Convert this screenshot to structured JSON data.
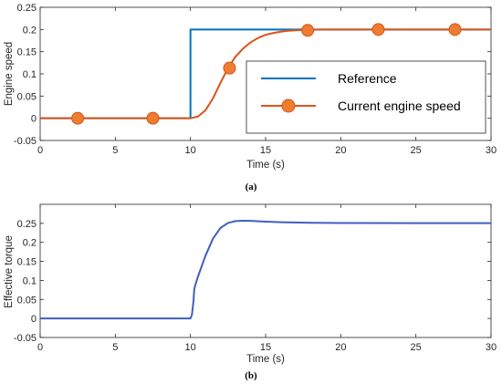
{
  "chart_data": [
    {
      "type": "line",
      "caption": "(a)",
      "xlabel": "Time (s)",
      "ylabel": "Engine speed",
      "xlim": [
        0,
        30
      ],
      "ylim": [
        -0.05,
        0.25
      ],
      "xticks": [
        "0",
        "5",
        "10",
        "15",
        "20",
        "25",
        "30"
      ],
      "yticks": [
        "-0.05",
        "0",
        "0.05",
        "0.1",
        "0.15",
        "0.2",
        "0.25"
      ],
      "grid": false,
      "legend_position": "inside-right",
      "series": [
        {
          "name": "Reference",
          "color": "#0072BD",
          "x": [
            0,
            10,
            10,
            30
          ],
          "y": [
            0,
            0,
            0.2,
            0.2
          ]
        },
        {
          "name": "Current engine speed",
          "color": "#D95319",
          "marker": "circle",
          "x": [
            0,
            10,
            10.5,
            11,
            11.5,
            12,
            12.5,
            13,
            13.5,
            14,
            14.5,
            15,
            15.5,
            16,
            16.5,
            17,
            17.5,
            18,
            19,
            20,
            22,
            25,
            30
          ],
          "y": [
            0,
            0,
            0.004,
            0.018,
            0.045,
            0.08,
            0.113,
            0.139,
            0.157,
            0.171,
            0.181,
            0.188,
            0.192,
            0.195,
            0.197,
            0.198,
            0.199,
            0.1995,
            0.2,
            0.2,
            0.2,
            0.2,
            0.2
          ],
          "marker_points": {
            "x": [
              2.5,
              7.5,
              12.6,
              17.8,
              22.5,
              27.6
            ],
            "y": [
              0,
              0,
              0.113,
              0.198,
              0.2,
              0.2
            ]
          }
        }
      ]
    },
    {
      "type": "line",
      "caption": "(b)",
      "xlabel": "Time (s)",
      "ylabel": "Effective torque",
      "xlim": [
        0,
        30
      ],
      "ylim": [
        -0.05,
        0.3
      ],
      "xticks": [
        "0",
        "5",
        "10",
        "15",
        "20",
        "25",
        "30"
      ],
      "yticks": [
        "-0.05",
        "0",
        "0.05",
        "0.1",
        "0.15",
        "0.2",
        "0.25"
      ],
      "grid": false,
      "series": [
        {
          "color": "#3F5FBF",
          "x": [
            0,
            10,
            10.1,
            10.2,
            10.25,
            10.3,
            10.5,
            11,
            11.5,
            12,
            12.5,
            13,
            13.5,
            14,
            15,
            16,
            18,
            20,
            25,
            30
          ],
          "y": [
            0,
            0,
            0.01,
            0.045,
            0.075,
            0.085,
            0.11,
            0.165,
            0.21,
            0.238,
            0.251,
            0.256,
            0.257,
            0.2565,
            0.2545,
            0.253,
            0.2515,
            0.251,
            0.2505,
            0.2505
          ]
        }
      ]
    }
  ]
}
